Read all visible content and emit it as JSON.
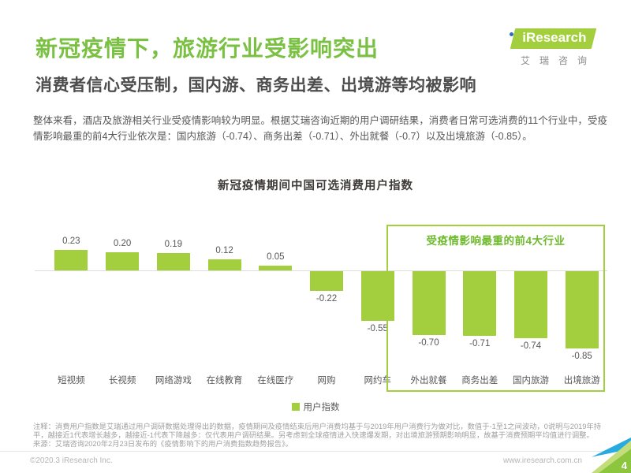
{
  "header": {
    "title": "新冠疫情下，旅游行业受影响突出",
    "subtitle": "消费者信心受压制，国内游、商务出差、出境游等均被影响"
  },
  "logo": {
    "brand": "iResearch",
    "chinese": "艾瑞咨询",
    "brand_bg_color": "#a3cf3e",
    "dot_color": "#2d6db5"
  },
  "intro": {
    "body": "整体来看，酒店及旅游相关行业受疫情影响较为明显。根据艾瑞咨询近期的用户调研结果，消费者日常可选消费的11个行业中，受疫情影响最重的前4大行业依次是：国内旅游（-0.74）、商务出差（-0.71）、外出就餐（-0.7）以及出境旅游（-0.85）。"
  },
  "chart_data": {
    "type": "bar",
    "title": "新冠疫情期间中国可选消费用户指数",
    "categories": [
      "短视频",
      "长视频",
      "网络游戏",
      "在线教育",
      "在线医疗",
      "网购",
      "网约车",
      "外出就餐",
      "商务出差",
      "国内旅游",
      "出境旅游"
    ],
    "values": [
      0.23,
      0.2,
      0.19,
      0.12,
      0.05,
      -0.22,
      -0.55,
      -0.7,
      -0.71,
      -0.74,
      -0.85
    ],
    "ylim": [
      -1,
      1
    ],
    "axis_visible": false,
    "data_labels": true,
    "bar_color": "#a3cf3e",
    "legend": [
      "用户指数"
    ],
    "legend_position": "bottom",
    "highlight": {
      "label": "受疫情影响最重的前4大行业",
      "start_index": 7,
      "end_index": 10,
      "border_color": "#a3cf3e"
    }
  },
  "notes": {
    "note": "注释：消费用户指数是艾瑞通过用户调研数据处理得出的数据，疫情期间及疫情结束后用户消费均基于与2019年用户消费行为做对比，数值于-1至1之间波动，0说明与2019年持平，越接近1代表增长越多，越接近-1代表下降越多：仅代表用户调研结果。另考虑到全球疫情进入快速爆发期，对出境旅游预期影响明显，故基于消费预期平均值进行调整。",
    "source": "来源：艾瑞咨询2020年2月23日发布的《疫情影响下的用户消费指数趋势报告》。"
  },
  "footer": {
    "copyright": "©2020.3 iResearch Inc.",
    "website": "www.iresearch.com.cn",
    "page_number": "4"
  }
}
